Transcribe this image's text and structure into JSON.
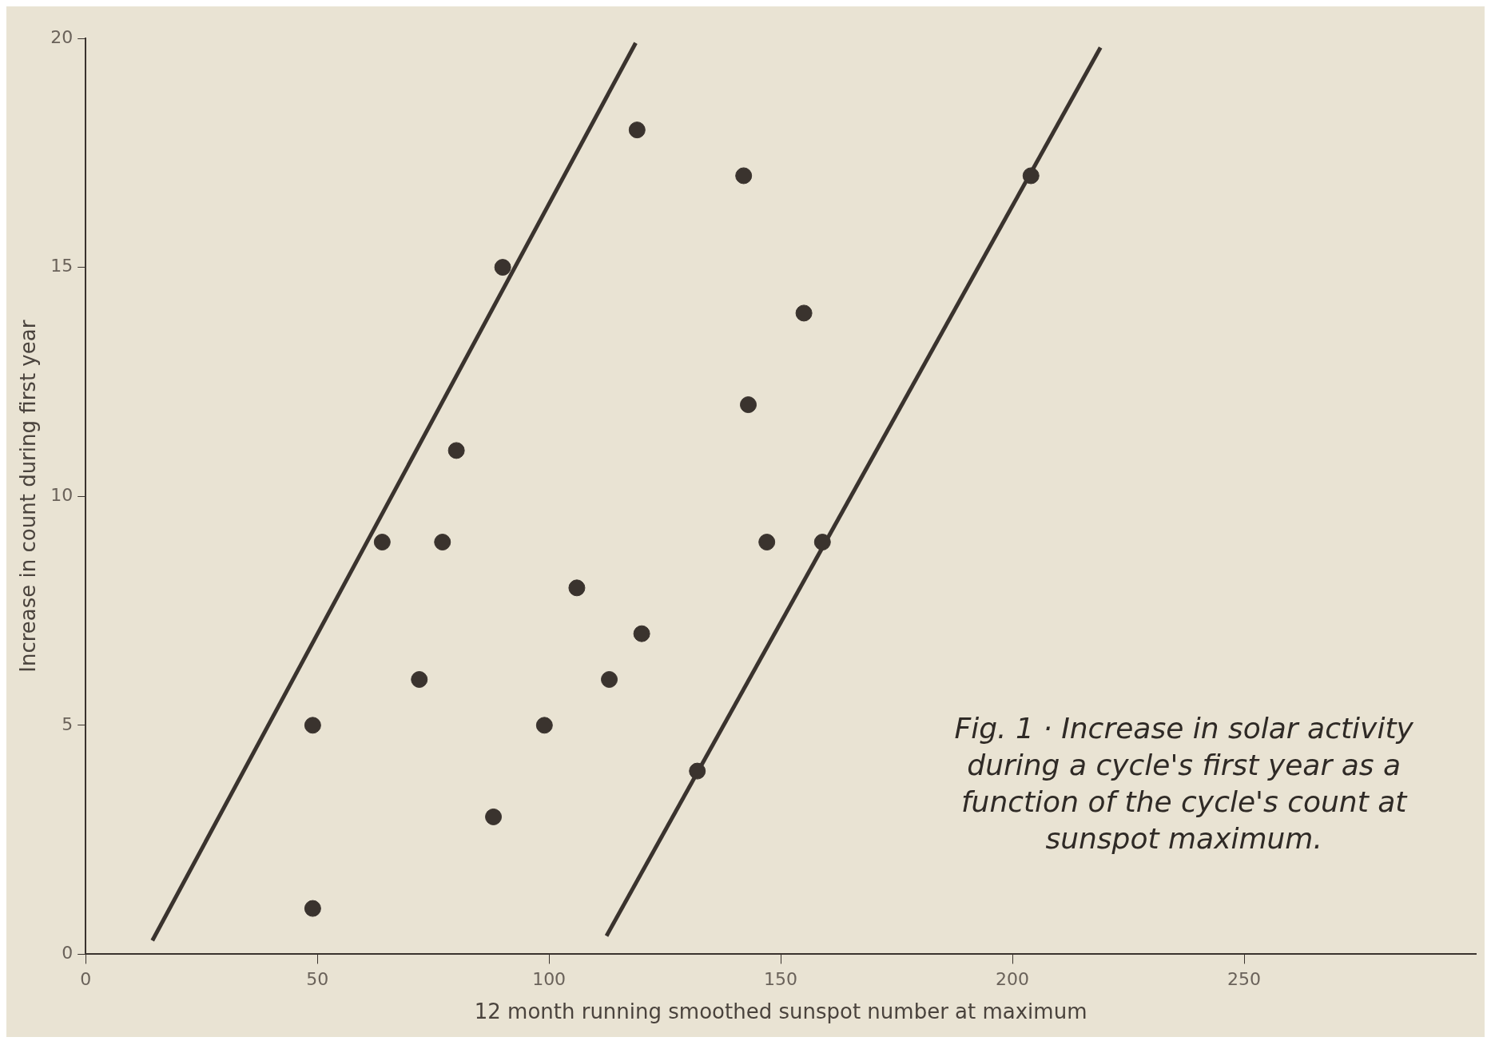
{
  "chart_data": {
    "type": "scatter",
    "xlabel": "12 month running smoothed sunspot number at maximum",
    "ylabel": "Increase in count during first year",
    "series": [
      {
        "marker": "circle",
        "color": "#3a332e",
        "x": [
          49,
          49,
          64,
          72,
          77,
          80,
          90,
          88,
          99,
          106,
          113,
          120,
          119,
          142,
          143,
          155,
          147,
          159,
          132,
          204
        ],
        "values": [
          1,
          5,
          9,
          6,
          9,
          11,
          15,
          3,
          5,
          8,
          6,
          7,
          18,
          17,
          12,
          14,
          9,
          9,
          4,
          17
        ]
      },
      {
        "type": "line",
        "marker": "none",
        "color": "#3a332e",
        "x": [
          14.4,
          118.7
        ],
        "values": [
          0.3,
          19.9
        ]
      },
      {
        "type": "line",
        "marker": "none",
        "color": "#3a332e",
        "x": [
          112.4,
          219
        ],
        "values": [
          0.4,
          19.8
        ]
      }
    ],
    "xlim": [
      0,
      300
    ],
    "xticks": [
      0,
      50,
      100,
      150,
      200,
      250
    ],
    "ylim": [
      0,
      20
    ],
    "yticks": [
      0,
      5,
      10,
      15,
      20
    ],
    "grid": false,
    "legend": false,
    "annotations": [
      "Fig. 1 · Increase in solar activity during a cycle's first year as a function of the cycle's count at sunspot maximum."
    ]
  }
}
